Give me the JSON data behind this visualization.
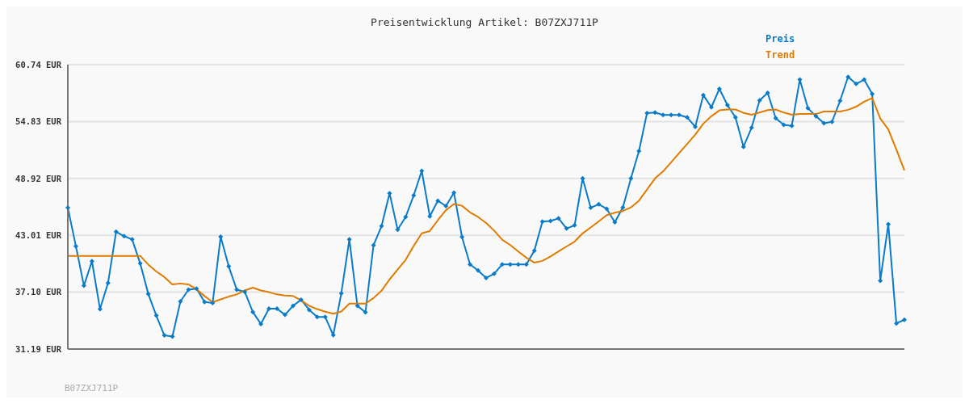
{
  "chart_data": {
    "type": "line",
    "title": "Preisentwicklung Artikel: B07ZXJ711P",
    "annotations": [
      "B07ZXJ711P"
    ],
    "categories": [
      null,
      null,
      null,
      null,
      null,
      null,
      null,
      null,
      null,
      null,
      null,
      null,
      null,
      null,
      null,
      null,
      null,
      null,
      null,
      null,
      null,
      null,
      null,
      null,
      null,
      null,
      null,
      null,
      null,
      null,
      null,
      null,
      null,
      null,
      null,
      null,
      null,
      null,
      null,
      null,
      null,
      null,
      null,
      null,
      null,
      null,
      null,
      null,
      null,
      null,
      null,
      null,
      null,
      null,
      null,
      null,
      null,
      null,
      null,
      null,
      null,
      null,
      null,
      null,
      null,
      null,
      null,
      null,
      null,
      null,
      null,
      null,
      null,
      null,
      null,
      null,
      null,
      null,
      null,
      null,
      null,
      null,
      null,
      null,
      null,
      null,
      null,
      null,
      null,
      null,
      null,
      null,
      null,
      null,
      null,
      null,
      null,
      null,
      null,
      null,
      null,
      null,
      null,
      null,
      null
    ],
    "series": [
      {
        "name": "Preis",
        "color": "#0a7bc8",
        "marker": "diamond",
        "values": [
          45.88,
          41.88,
          37.77,
          40.32,
          35.34,
          38.06,
          43.38,
          42.92,
          42.58,
          40.08,
          36.93,
          34.67,
          32.61,
          32.49,
          36.14,
          37.36,
          37.47,
          36.08,
          35.97,
          42.86,
          39.79,
          37.36,
          37.13,
          35.04,
          33.8,
          35.39,
          35.39,
          34.75,
          35.68,
          36.32,
          35.27,
          34.52,
          34.52,
          32.64,
          36.99,
          42.58,
          35.68,
          35.01,
          41.97,
          43.97,
          47.38,
          43.59,
          44.92,
          47.16,
          49.7,
          44.98,
          46.6,
          46.05,
          47.44,
          42.84,
          39.99,
          39.36,
          38.58,
          39.01,
          39.99,
          39.99,
          39.99,
          39.99,
          41.42,
          44.43,
          44.49,
          44.77,
          43.71,
          44.05,
          48.92,
          45.88,
          46.23,
          45.76,
          44.37,
          45.9,
          48.92,
          51.76,
          55.7,
          55.76,
          55.52,
          55.52,
          55.52,
          55.26,
          54.28,
          57.58,
          56.31,
          58.22,
          56.54,
          55.26,
          52.2,
          54.19,
          57.03,
          57.81,
          55.18,
          54.48,
          54.39,
          59.18,
          56.22,
          55.38,
          54.66,
          54.8,
          56.98,
          59.46,
          58.74,
          59.18,
          57.7,
          38.29,
          44.17,
          33.86,
          34.23
        ]
      },
      {
        "name": "Trend",
        "color": "#e07b00",
        "marker": "none",
        "values": [
          40.87,
          40.87,
          40.87,
          40.87,
          40.87,
          40.87,
          40.87,
          40.87,
          40.87,
          40.87,
          39.97,
          39.25,
          38.67,
          37.91,
          38.0,
          37.91,
          37.39,
          36.7,
          36.06,
          36.35,
          36.64,
          36.87,
          37.28,
          37.57,
          37.28,
          37.1,
          36.87,
          36.75,
          36.7,
          36.26,
          35.68,
          35.34,
          35.07,
          34.87,
          35.1,
          35.91,
          35.91,
          35.91,
          36.49,
          37.25,
          38.43,
          39.45,
          40.46,
          41.91,
          43.21,
          43.45,
          44.58,
          45.62,
          46.26,
          46.08,
          45.39,
          44.92,
          44.29,
          43.5,
          42.55,
          42.0,
          41.33,
          40.69,
          40.17,
          40.35,
          40.81,
          41.33,
          41.85,
          42.35,
          43.21,
          43.82,
          44.46,
          45.1,
          45.36,
          45.53,
          45.91,
          46.6,
          47.76,
          48.92,
          49.65,
          50.6,
          51.56,
          52.51,
          53.47,
          54.6,
          55.38,
          55.99,
          56.08,
          56.08,
          55.73,
          55.53,
          55.76,
          56.02,
          56.08,
          55.76,
          55.53,
          55.61,
          55.61,
          55.61,
          55.87,
          55.87,
          55.87,
          56.05,
          56.37,
          56.89,
          57.27,
          55.15,
          54.02,
          51.91,
          49.76
        ]
      }
    ],
    "ylim": [
      31.19,
      60.74
    ],
    "yticks": [
      {
        "value": 31.19,
        "label": "31.19 EUR"
      },
      {
        "value": 37.1,
        "label": "37.10 EUR"
      },
      {
        "value": 43.01,
        "label": "43.01 EUR"
      },
      {
        "value": 48.92,
        "label": "48.92 EUR"
      },
      {
        "value": 54.83,
        "label": "54.83 EUR"
      },
      {
        "value": 60.74,
        "label": "60.74 EUR"
      }
    ],
    "grid": "y",
    "legend": "top right",
    "line_style": "solid"
  }
}
